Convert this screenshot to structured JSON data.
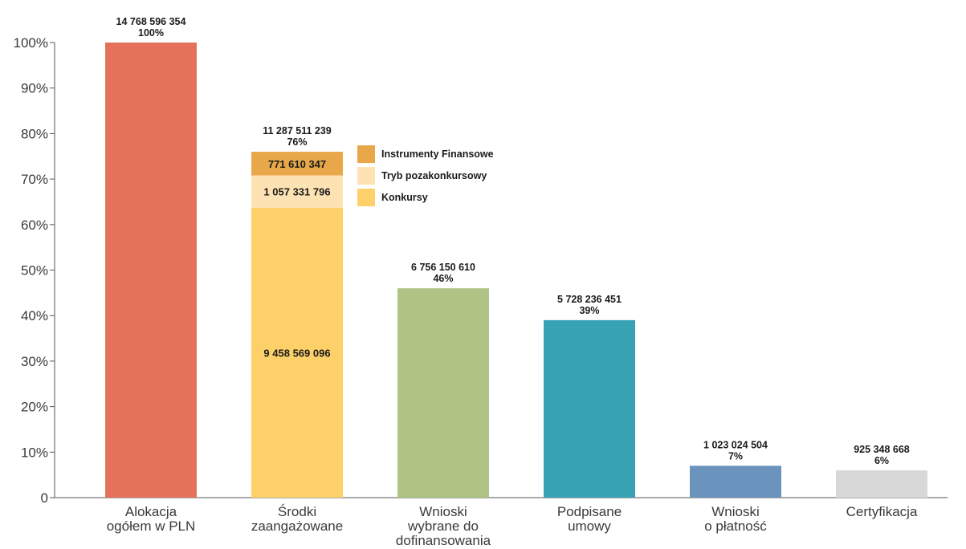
{
  "chart_data": {
    "type": "bar",
    "title": "",
    "xlabel": "",
    "ylabel": "",
    "ylim": [
      0,
      100
    ],
    "ytick_labels": [
      "0",
      "10%",
      "20%",
      "30%",
      "40%",
      "50%",
      "60%",
      "70%",
      "80%",
      "90%",
      "100%"
    ],
    "grid": false,
    "legend_position": "right-of-stacked-bar",
    "categories": [
      [
        "Alokacja",
        "ogółem w PLN"
      ],
      [
        "Środki",
        "zaangażowane"
      ],
      [
        "Wnioski",
        "wybrane do",
        "dofinansowania"
      ],
      [
        "Podpisane",
        "umowy"
      ],
      [
        "Wnioski",
        "o płatność"
      ],
      [
        "Certyfikacja"
      ]
    ],
    "bars": [
      {
        "percent": 100,
        "amount": "14 768 596 354",
        "percent_label": "100%",
        "color": "#e4725b"
      },
      {
        "percent": 76,
        "amount": "11 287 511 239",
        "percent_label": "76%",
        "stacked": true,
        "segments": [
          {
            "name": "Konkursy",
            "value": 9458569096,
            "value_label": "9 458 569 096",
            "color": "#fdd069"
          },
          {
            "name": "Tryb pozakonkursowy",
            "value": 1057331796,
            "value_label": "1 057 331 796",
            "color": "#fde3b3"
          },
          {
            "name": "Instrumenty Finansowe",
            "value": 771610347,
            "value_label": "771 610 347",
            "color": "#e8a84a"
          }
        ]
      },
      {
        "percent": 46,
        "amount": "6 756 150 610",
        "percent_label": "46%",
        "color": "#afc484"
      },
      {
        "percent": 39,
        "amount": "5 728 236 451",
        "percent_label": "39%",
        "color": "#36a2b4"
      },
      {
        "percent": 7,
        "amount": "1 023 024 504",
        "percent_label": "7%",
        "color": "#6a94bd"
      },
      {
        "percent": 6,
        "amount": "925 348 668",
        "percent_label": "6%",
        "color": "#d8d8d8"
      }
    ],
    "legend": [
      {
        "name": "Instrumenty Finansowe",
        "color": "#e8a84a"
      },
      {
        "name": "Tryb pozakonkursowy",
        "color": "#fde3b3"
      },
      {
        "name": "Konkursy",
        "color": "#fdd069"
      }
    ],
    "colors": {
      "axis": "#555555",
      "text": "#3a3a3a",
      "labels": "#1a1a1a"
    }
  }
}
